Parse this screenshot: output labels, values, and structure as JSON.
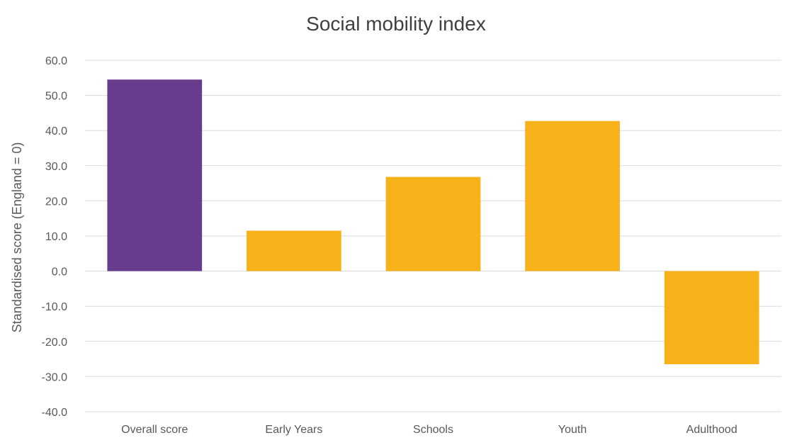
{
  "chart_data": {
    "type": "bar",
    "title": "Social mobility index",
    "xlabel": "",
    "ylabel": "Standardised score (England = 0)",
    "categories": [
      "Overall score",
      "Early Years",
      "Schools",
      "Youth",
      "Adulthood"
    ],
    "values": [
      54.5,
      11.5,
      26.8,
      42.7,
      -26.5
    ],
    "bar_colors": [
      "#673c8c",
      "#f8b219",
      "#f8b219",
      "#f8b219",
      "#f8b219"
    ],
    "ylim": [
      -40,
      60
    ],
    "y_ticks": [
      "60.0",
      "50.0",
      "40.0",
      "30.0",
      "20.0",
      "10.0",
      "0.0",
      "-10.0",
      "-20.0",
      "-30.0",
      "-40.0"
    ],
    "y_tick_values": [
      60,
      50,
      40,
      30,
      20,
      10,
      0,
      -10,
      -20,
      -30,
      -40
    ],
    "grid": true,
    "legend": "none"
  }
}
